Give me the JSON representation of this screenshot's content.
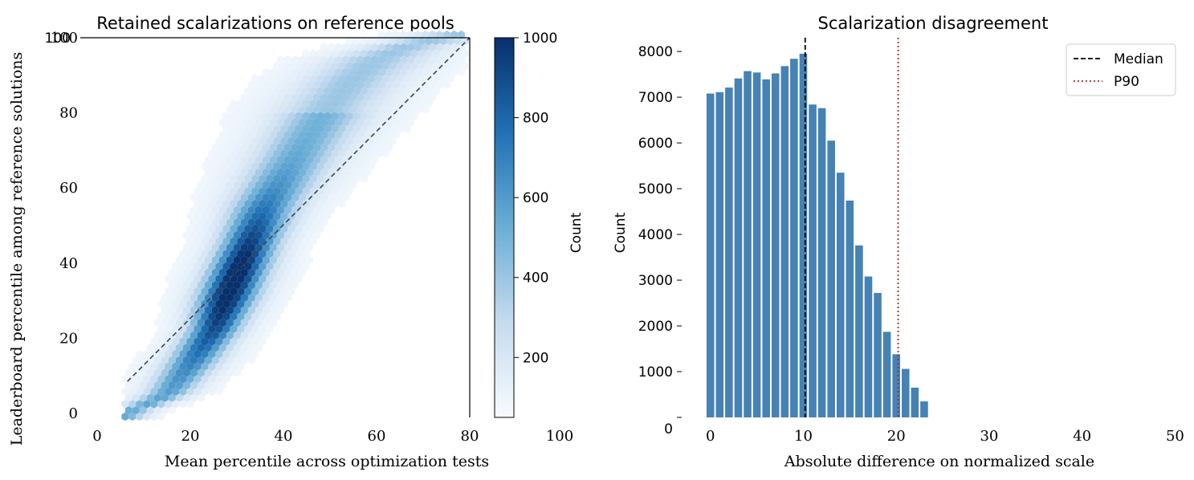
{
  "chart_data": [
    {
      "type": "hexbin",
      "title": "Retained scalarizations on reference pools",
      "xlabel": "Mean percentile across optimization tests",
      "ylabel": "Leaderboard percentile among reference solutions",
      "xlim": [
        0,
        80
      ],
      "ylim": [
        0,
        100
      ],
      "x_ticks": [
        "0",
        "20",
        "40",
        "60",
        "80",
        "100"
      ],
      "y_ticks": [
        "0",
        "20",
        "40",
        "60",
        "80",
        "100"
      ],
      "reference_line": {
        "x": [
          6.5,
          80
        ],
        "y": [
          8.5,
          100
        ],
        "style": "dashed"
      },
      "density_ridge": {
        "x": [
          6,
          10,
          15,
          20,
          25,
          28,
          30,
          33,
          36,
          40,
          45,
          50,
          55,
          60,
          65,
          70,
          78
        ],
        "y": [
          0,
          2,
          5,
          13,
          22,
          31,
          37,
          46,
          55,
          63,
          73,
          82,
          89,
          94,
          97,
          99,
          100
        ],
        "spread": [
          2.5,
          2.5,
          3,
          3.5,
          3.5,
          4,
          4,
          4,
          4.5,
          5,
          5.5,
          6,
          6,
          6,
          5,
          5,
          5
        ]
      },
      "colorbar": {
        "label": "Count",
        "range": [
          50,
          1000
        ],
        "ticks": [
          "200",
          "400",
          "600",
          "800",
          "1000"
        ],
        "colormap": "Blues"
      }
    },
    {
      "type": "bar",
      "title": "Scalarization disagreement",
      "xlabel": "Absolute difference on normalized scale",
      "ylabel": "Count",
      "xlim": [
        -3,
        51
      ],
      "ylim": [
        0,
        8300
      ],
      "x_ticks": [
        "0",
        "10",
        "20",
        "30",
        "40",
        "50"
      ],
      "y_ticks": [
        "0",
        "1000",
        "2000",
        "3000",
        "4000",
        "5000",
        "6000",
        "7000",
        "8000"
      ],
      "bin_width": 1,
      "bin_starts": [
        -0.5,
        0.5,
        1.5,
        2.5,
        3.5,
        4.5,
        5.5,
        6.5,
        7.5,
        8.5,
        9.5,
        10.5,
        11.5,
        12.5,
        13.5,
        14.5,
        15.5,
        16.5,
        17.5,
        18.5,
        19.5,
        20.5,
        21.5,
        22.5,
        23.5,
        24.5,
        25.5,
        26.5,
        27.5
      ],
      "values": [
        7080,
        7110,
        7210,
        7410,
        7570,
        7540,
        7390,
        7520,
        7680,
        7840,
        7950,
        6840,
        6760,
        6050,
        5350,
        4740,
        3760,
        3080,
        2720,
        1870,
        1380,
        1060,
        650,
        350,
        0,
        0,
        0,
        0,
        0
      ],
      "bar_color": "#4682b4",
      "vlines": [
        {
          "name": "Median",
          "x": 10.2,
          "color": "#000000",
          "style": "dashed"
        },
        {
          "name": "P90",
          "x": 20.2,
          "color": "#b22222",
          "style": "dotted"
        }
      ],
      "legend": {
        "placement": "top-right",
        "entries": [
          "Median",
          "P90"
        ]
      }
    }
  ]
}
